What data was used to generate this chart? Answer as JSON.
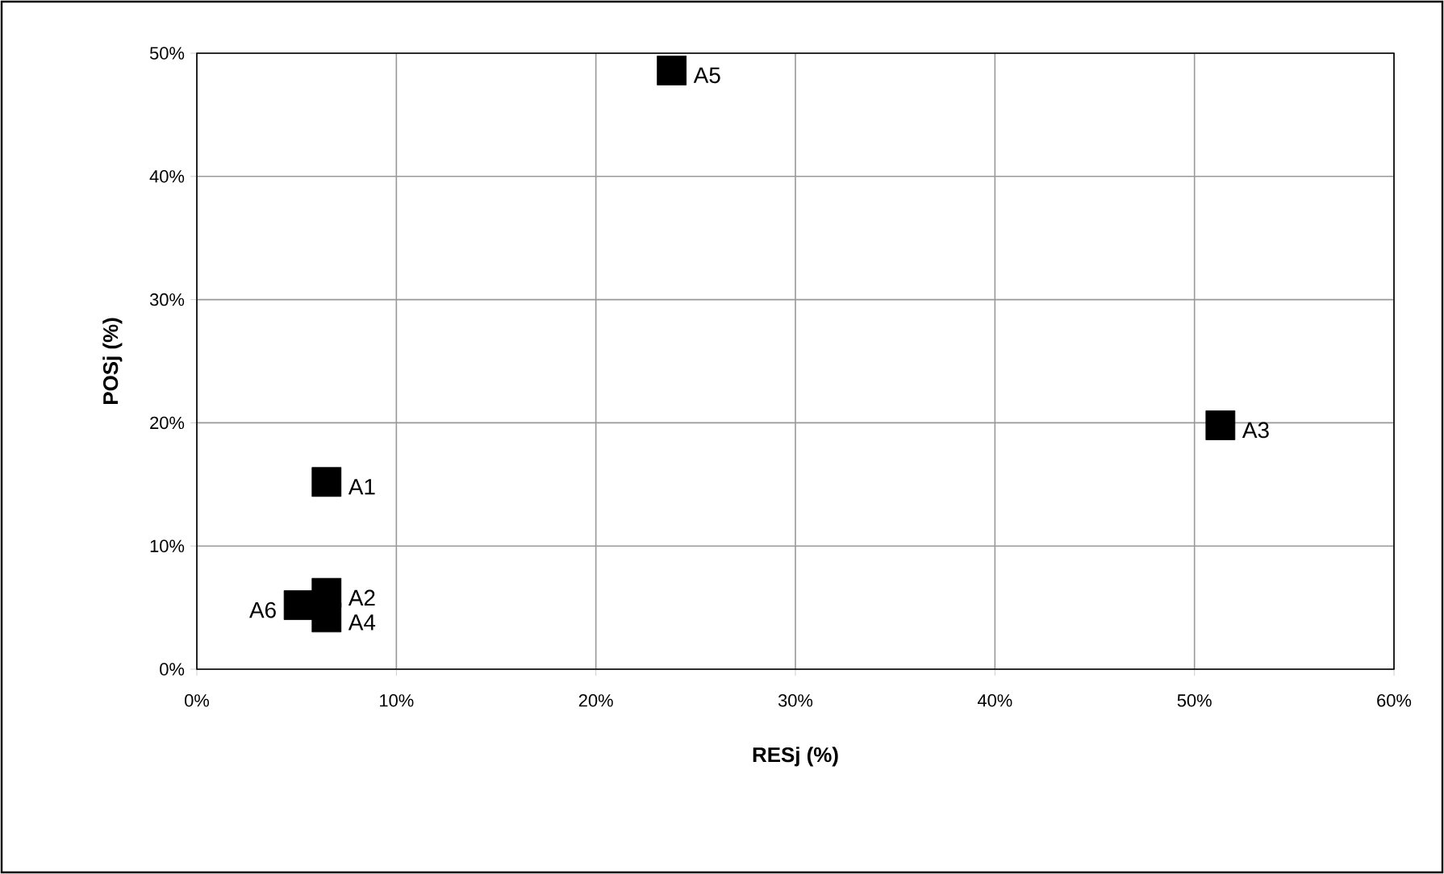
{
  "chart_data": {
    "type": "scatter",
    "xlabel": "RESj (%)",
    "ylabel": "POSj (%)",
    "x": [
      6.5,
      6.5,
      51.3,
      6.5,
      23.8,
      5.1
    ],
    "values": [
      15.2,
      6.2,
      19.8,
      4.2,
      48.6,
      5.2
    ],
    "color": "#000000",
    "marker": "square",
    "xlim": [
      0,
      60
    ],
    "xticks": [
      {
        "value": 0,
        "label": "0%"
      },
      {
        "value": 10,
        "label": "10%"
      },
      {
        "value": 20,
        "label": "20%"
      },
      {
        "value": 30,
        "label": "30%"
      },
      {
        "value": 40,
        "label": "40%"
      },
      {
        "value": 50,
        "label": "50%"
      },
      {
        "value": 60,
        "label": "60%"
      }
    ],
    "ylim": [
      0,
      50
    ],
    "yticks": [
      {
        "value": 0,
        "label": "0%"
      },
      {
        "value": 10,
        "label": "10%"
      },
      {
        "value": 20,
        "label": "20%"
      },
      {
        "value": 30,
        "label": "30%"
      },
      {
        "value": 40,
        "label": "40%"
      },
      {
        "value": 50,
        "label": "50%"
      }
    ],
    "grid": true,
    "annotations": [
      {
        "text": "A1",
        "x": 6.5,
        "y": 15.2
      },
      {
        "text": "A2",
        "x": 6.5,
        "y": 6.2
      },
      {
        "text": "A3",
        "x": 51.3,
        "y": 19.8
      },
      {
        "text": "A4",
        "x": 6.5,
        "y": 4.2
      },
      {
        "text": "A5",
        "x": 23.8,
        "y": 48.6
      },
      {
        "text": "A6",
        "x": 5.1,
        "y": 5.2
      }
    ]
  }
}
